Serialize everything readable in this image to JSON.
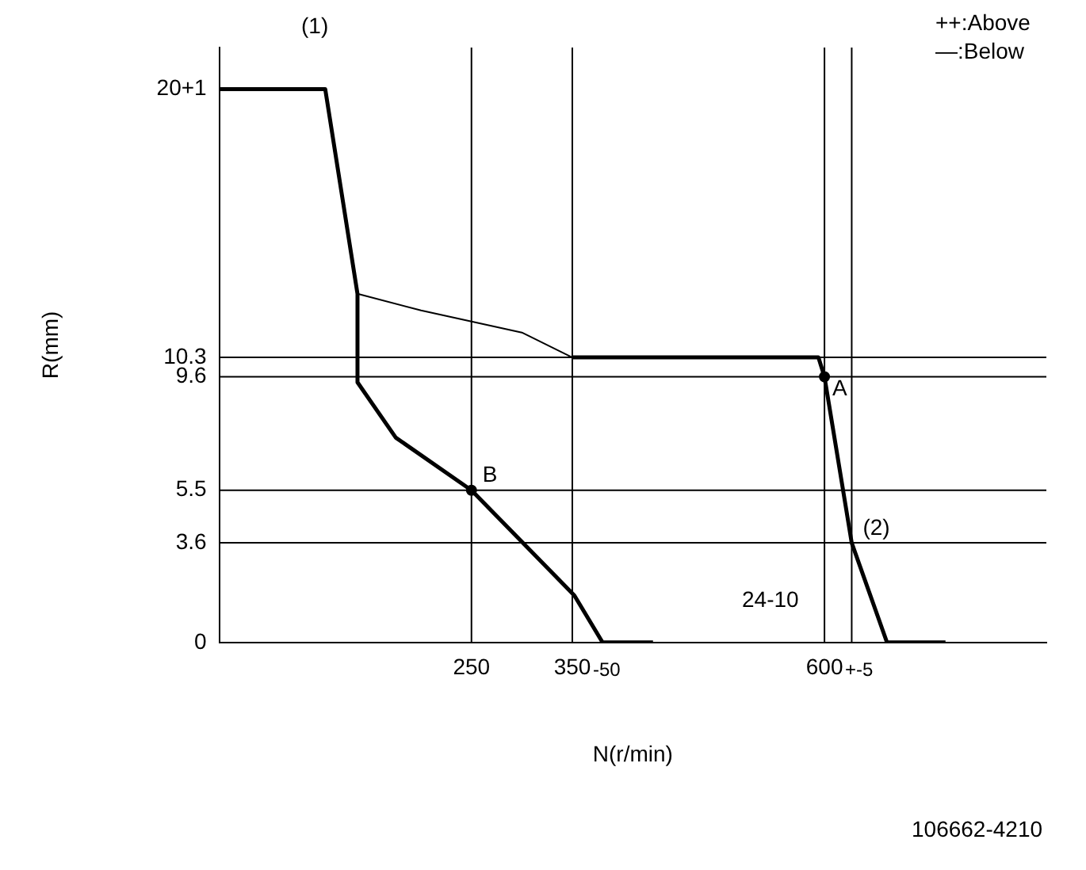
{
  "chart_data": {
    "type": "line",
    "xlabel": "N(r/min)",
    "ylabel": "R(mm)",
    "annotations": [
      "(1)",
      "++:Above",
      "—:Below",
      "24-10",
      "106662-4210",
      {
        "text": "-50",
        "x": 350,
        "y": 0
      },
      {
        "text": "+-5",
        "x": 600,
        "y": 0
      },
      {
        "text": "A",
        "x": 600,
        "y": 9.6
      },
      {
        "text": "B",
        "x": 250,
        "y": 5.5
      },
      {
        "text": "(2)",
        "x": 627,
        "y": 3.6
      }
    ],
    "xlim": [
      0,
      820
    ],
    "ylim": [
      0,
      21.5
    ],
    "xticks": [
      250,
      350,
      600
    ],
    "yticks": [
      0,
      3.6,
      5.5,
      9.6,
      10.3,
      {
        "value": 20,
        "label": "20+1"
      }
    ],
    "grid": false,
    "legend": false,
    "series": [
      {
        "color": "#000000",
        "x": [
          0,
          105,
          137,
          137,
          175,
          250,
          352,
          380,
          430
        ],
        "values": [
          20,
          20,
          12.6,
          9.4,
          7.4,
          5.5,
          1.7,
          0,
          0
        ]
      },
      {
        "color": "#000000",
        "x": [
          350,
          594,
          600,
          627,
          662,
          720
        ],
        "values": [
          10.3,
          10.3,
          9.6,
          3.6,
          0,
          0
        ]
      },
      {
        "color": "#000000",
        "line_style": "solid",
        "x": [
          137,
          200,
          300,
          350
        ],
        "values": [
          12.6,
          12,
          11.2,
          10.3
        ]
      },
      {
        "type": "scatter",
        "color": "#000000",
        "marker": "circle",
        "x": [
          250,
          600
        ],
        "values": [
          5.5,
          9.6
        ]
      }
    ],
    "ref_lines": [
      {
        "axis": "y",
        "value": 10.3
      },
      {
        "axis": "y",
        "value": 9.6
      },
      {
        "axis": "y",
        "value": 5.5
      },
      {
        "axis": "y",
        "value": 3.6
      },
      {
        "axis": "x",
        "value": 250
      },
      {
        "axis": "x",
        "value": 350
      },
      {
        "axis": "x",
        "value": 600
      },
      {
        "axis": "x",
        "value": 627
      }
    ]
  }
}
